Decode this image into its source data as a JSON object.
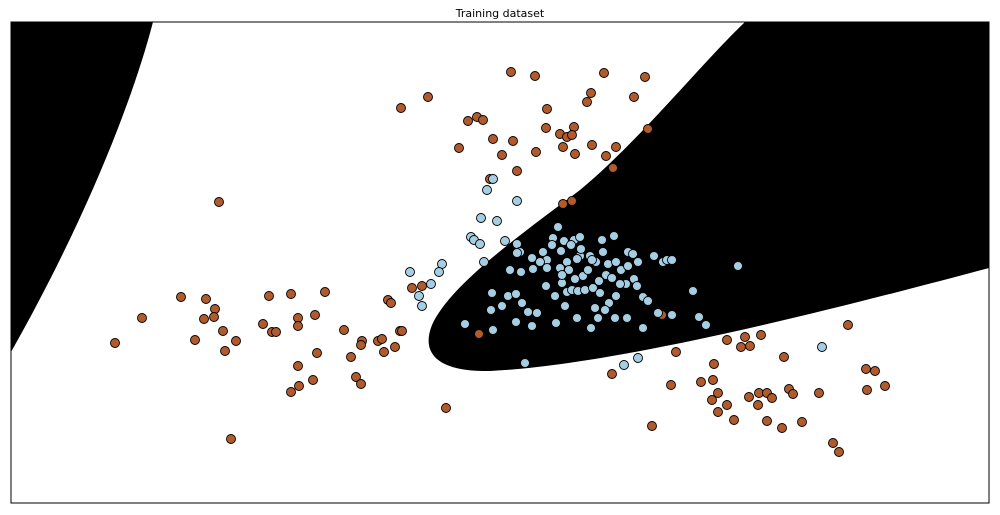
{
  "chart_data": {
    "type": "scatter",
    "title": "Training dataset",
    "xlim": [
      11,
      989
    ],
    "ylim": [
      503,
      22
    ],
    "series": [
      {
        "color": "#b15a2b",
        "x": [
          511,
          535,
          604,
          645,
          401,
          428,
          547,
          591,
          587,
          634,
          468,
          477,
          483,
          546,
          560,
          574,
          567,
          572,
          493,
          513,
          459,
          502,
          536,
          563,
          575,
          592,
          606,
          616,
          613,
          648,
          517,
          490,
          219,
          563,
          572,
          115,
          142,
          181,
          206,
          215,
          204,
          214,
          223,
          195,
          236,
          225,
          269,
          291,
          325,
          263,
          272,
          276,
          298,
          298,
          315,
          344,
          362,
          361,
          378,
          382,
          351,
          317,
          298,
          313,
          299,
          291,
          356,
          361,
          384,
          395,
          400,
          402,
          388,
          391,
          412,
          422,
          231,
          446,
          479,
          662,
          612,
          676,
          671,
          652,
          701,
          714,
          713,
          718,
          712,
          718,
          727,
          734,
          727,
          741,
          745,
          750,
          761,
          784,
          749,
          759,
          767,
          772,
          758,
          767,
          782,
          789,
          793,
          802,
          819,
          848,
          866,
          875,
          867,
          885,
          833,
          839
        ],
        "y": [
          72,
          76,
          73,
          77,
          108,
          97,
          109,
          93,
          102,
          97,
          121,
          117,
          120,
          128,
          134,
          127,
          137,
          135,
          139,
          141,
          148,
          155,
          152,
          147,
          154,
          145,
          156,
          147,
          168,
          129,
          171,
          179,
          202,
          204,
          201,
          343,
          318,
          297,
          299,
          309,
          319,
          317,
          331,
          340,
          341,
          351,
          296,
          294,
          292,
          324,
          332,
          332,
          318,
          326,
          315,
          330,
          341,
          345,
          341,
          339,
          357,
          353,
          366,
          380,
          386,
          392,
          377,
          384,
          352,
          347,
          331,
          331,
          300,
          303,
          288,
          286,
          439,
          408,
          334,
          315,
          374,
          352,
          385,
          426,
          382,
          364,
          380,
          393,
          400,
          412,
          405,
          420,
          340,
          347,
          337,
          346,
          335,
          357,
          397,
          393,
          393,
          398,
          405,
          421,
          428,
          389,
          394,
          422,
          393,
          325,
          369,
          371,
          390,
          386,
          443,
          452
        ]
      },
      {
        "color": "#a6cee3",
        "x": [
          493,
          487,
          517,
          497,
          481,
          471,
          474,
          480,
          505,
          517,
          520,
          532,
          543,
          553,
          558,
          564,
          574,
          580,
          571,
          552,
          561,
          547,
          580,
          590,
          602,
          614,
          603,
          596,
          592,
          577,
          567,
          560,
          547,
          540,
          533,
          521,
          510,
          517,
          484,
          442,
          439,
          410,
          431,
          419,
          422,
          465,
          492,
          491,
          502,
          508,
          516,
          522,
          516,
          528,
          537,
          532,
          546,
          555,
          562,
          567,
          572,
          578,
          585,
          593,
          599,
          583,
          588,
          575,
          569,
          562,
          606,
          612,
          608,
          616,
          621,
          628,
          633,
          638,
          628,
          626,
          634,
          637,
          620,
          616,
          600,
          609,
          605,
          595,
          598,
          591,
          577,
          565,
          556,
          615,
          627,
          643,
          648,
          643,
          654,
          663,
          667,
          672,
          658,
          672,
          693,
          699,
          706,
          738,
          822,
          525,
          624,
          638,
          493,
          581
        ],
        "y": [
          179,
          190,
          201,
          221,
          218,
          237,
          240,
          244,
          241,
          244,
          252,
          258,
          252,
          238,
          227,
          241,
          240,
          237,
          245,
          245,
          251,
          260,
          256,
          256,
          240,
          236,
          252,
          262,
          260,
          259,
          262,
          268,
          268,
          262,
          269,
          272,
          270,
          253,
          262,
          264,
          272,
          272,
          284,
          296,
          306,
          324,
          293,
          310,
          306,
          296,
          294,
          303,
          322,
          312,
          313,
          326,
          286,
          296,
          283,
          292,
          290,
          291,
          290,
          288,
          281,
          276,
          270,
          279,
          270,
          275,
          275,
          278,
          264,
          262,
          270,
          252,
          254,
          262,
          266,
          284,
          279,
          286,
          284,
          296,
          293,
          303,
          310,
          308,
          318,
          328,
          318,
          306,
          323,
          318,
          318,
          297,
          301,
          328,
          256,
          262,
          260,
          260,
          313,
          315,
          291,
          317,
          325,
          266,
          347,
          363,
          365,
          358,
          330,
          249
        ]
      }
    ]
  }
}
